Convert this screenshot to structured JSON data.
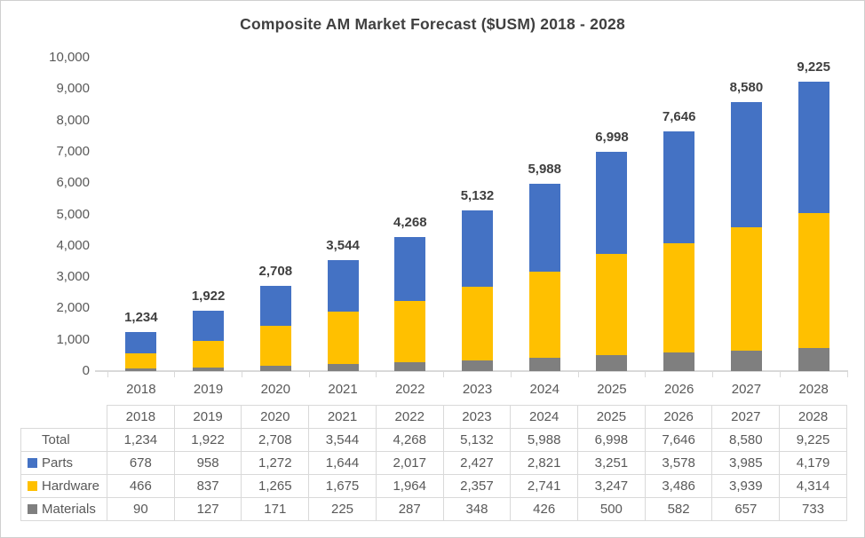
{
  "title": "Composite AM Market Forecast ($USM) 2018 - 2028",
  "chart_data": {
    "type": "bar",
    "stacked": true,
    "title": "Composite AM Market Forecast ($USM) 2018 - 2028",
    "categories": [
      "2018",
      "2019",
      "2020",
      "2021",
      "2022",
      "2023",
      "2024",
      "2025",
      "2026",
      "2027",
      "2028"
    ],
    "series": [
      {
        "name": "Parts",
        "color": "#4472C4",
        "values": [
          678,
          958,
          1272,
          1644,
          2017,
          2427,
          2821,
          3251,
          3578,
          3985,
          4179
        ]
      },
      {
        "name": "Hardware",
        "color": "#FFC000",
        "values": [
          466,
          837,
          1265,
          1675,
          1964,
          2357,
          2741,
          3247,
          3486,
          3939,
          4314
        ]
      },
      {
        "name": "Materials",
        "color": "#7F7F7F",
        "values": [
          90,
          127,
          171,
          225,
          287,
          348,
          426,
          500,
          582,
          657,
          733
        ]
      }
    ],
    "totals": [
      1234,
      1922,
      2708,
      3544,
      4268,
      5132,
      5988,
      6998,
      7646,
      8580,
      9225
    ],
    "xlabel": "",
    "ylabel": "",
    "ylim": [
      0,
      10000
    ],
    "ytick_step": 1000,
    "gridlines": false,
    "legend_position": "data-table",
    "data_labels": "total-above-bar"
  },
  "table": {
    "header_years": [
      "2018",
      "2019",
      "2020",
      "2021",
      "2022",
      "2023",
      "2024",
      "2025",
      "2026",
      "2027",
      "2028"
    ],
    "row_labels": [
      "Total",
      "Parts",
      "Hardware",
      "Materials"
    ]
  },
  "colors": {
    "parts": "#4472C4",
    "hardware": "#FFC000",
    "materials": "#7F7F7F",
    "axis_text": "#595959",
    "title_text": "#404040",
    "axis_line": "#D9D9D9",
    "table_border": "#D9D9D9",
    "background": "#FFFFFF"
  }
}
